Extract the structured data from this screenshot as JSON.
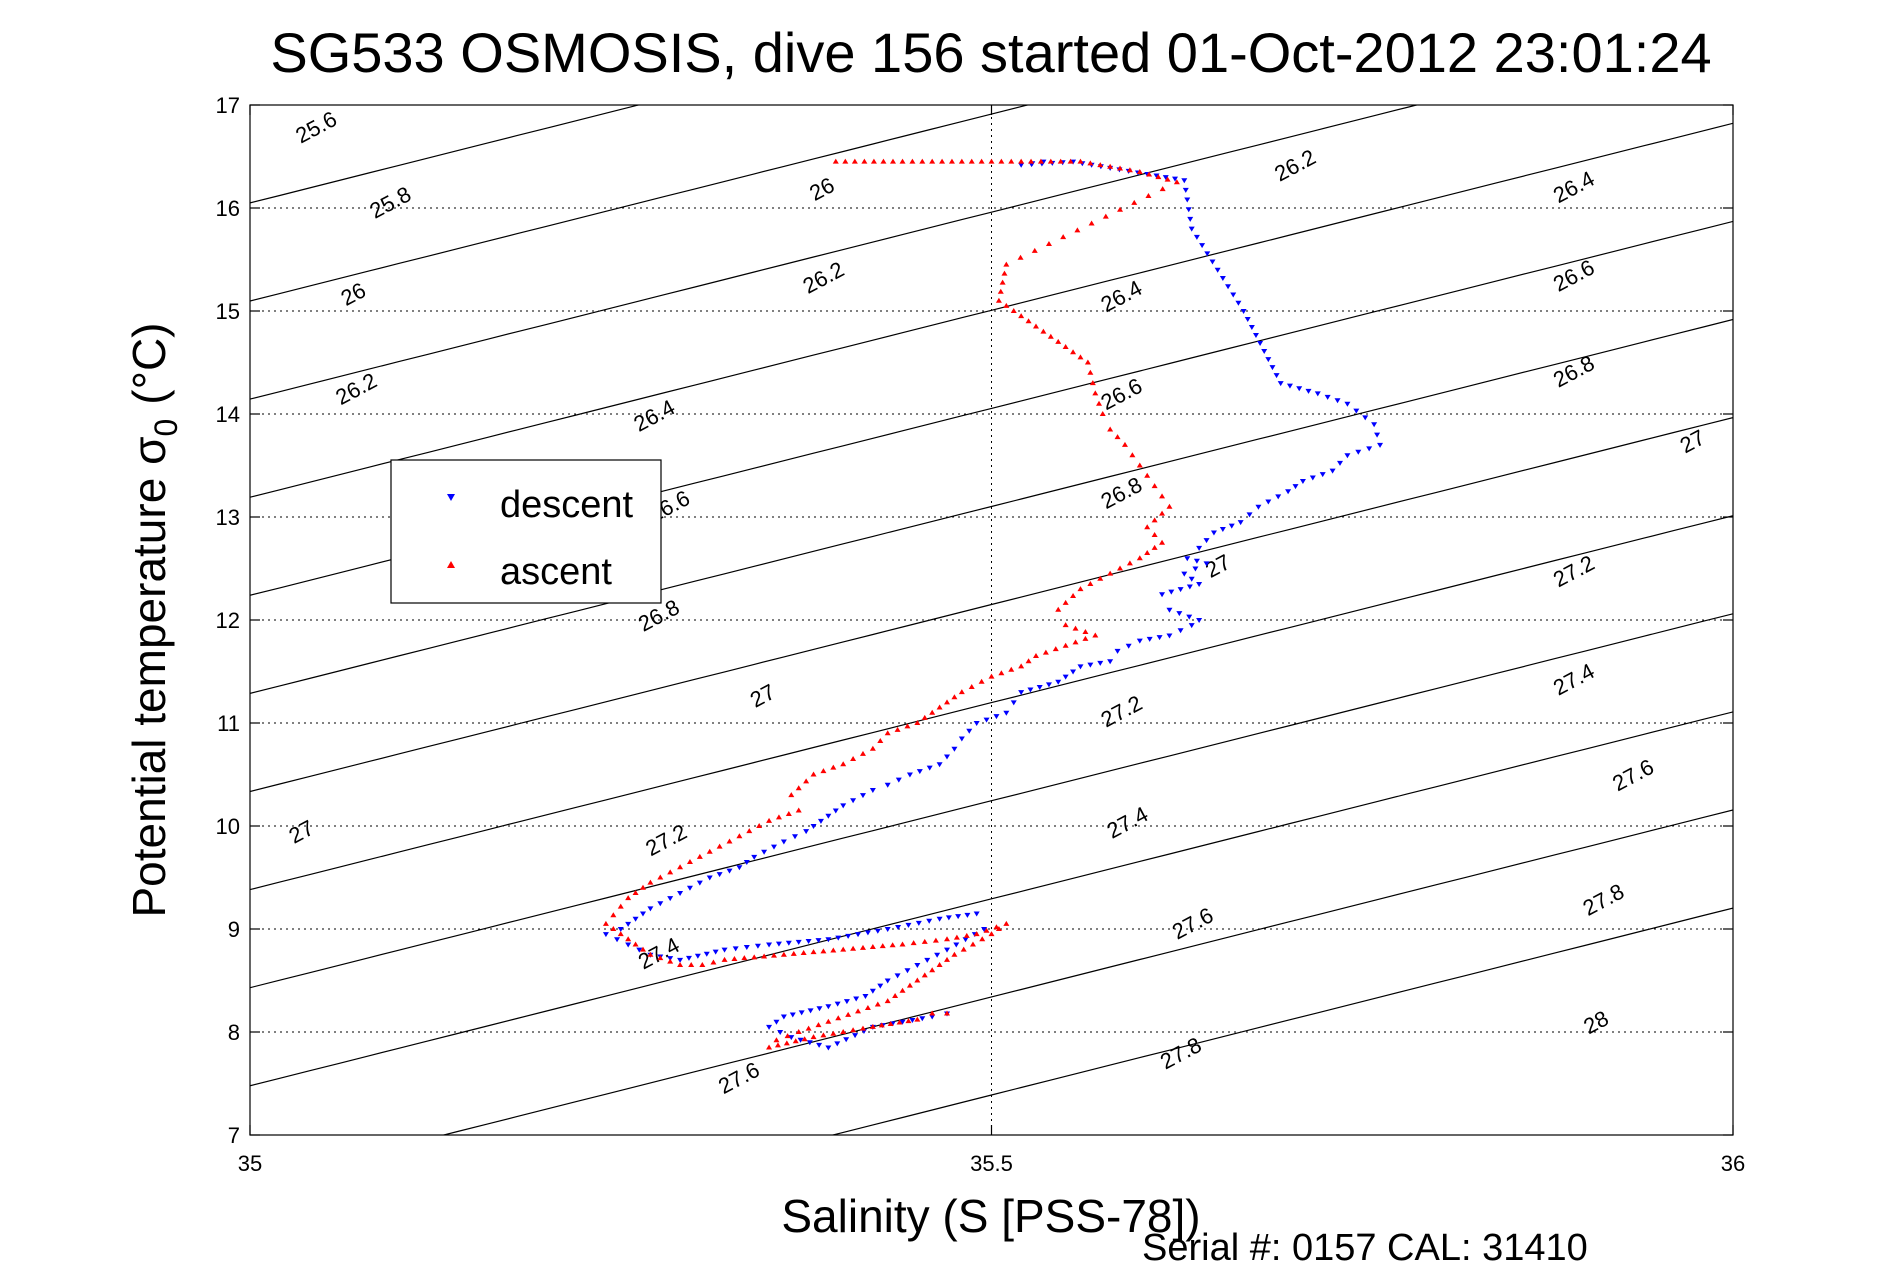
{
  "chart_data": {
    "type": "scatter",
    "title": "SG533 OSMOSIS, dive 156 started 01-Oct-2012 23:01:24",
    "xlabel": "Salinity (S [PSS-78])",
    "ylabel_main": "Potential temperature σ",
    "ylabel_sub": "0",
    "ylabel_unit": "(°C)",
    "xlim": [
      35,
      36
    ],
    "ylim": [
      7,
      17
    ],
    "xticks": [
      35,
      35.5,
      36
    ],
    "xtick_labels": [
      "35",
      "35.5",
      "36"
    ],
    "yticks": [
      7,
      8,
      9,
      10,
      11,
      12,
      13,
      14,
      15,
      16,
      17
    ],
    "ytick_labels": [
      "7",
      "8",
      "9",
      "10",
      "11",
      "12",
      "13",
      "14",
      "15",
      "16",
      "17"
    ],
    "grid": true,
    "legend_position": "left",
    "colors": {
      "descent": "#0000ff",
      "ascent": "#ff0000"
    },
    "contours": {
      "levels": [
        25.6,
        25.8,
        26.0,
        26.2,
        26.4,
        26.6,
        26.8,
        27.0,
        27.2,
        27.4,
        27.6,
        27.8,
        28.0
      ],
      "labels": [
        {
          "text": "25.6",
          "x": 35.047,
          "y": 16.72
        },
        {
          "text": "25.8",
          "x": 35.097,
          "y": 15.99
        },
        {
          "text": "26",
          "x": 35.072,
          "y": 15.1
        },
        {
          "text": "26.2",
          "x": 35.074,
          "y": 14.18
        },
        {
          "text": "26.4",
          "x": 35.275,
          "y": 13.92
        },
        {
          "text": "26.6",
          "x": 35.285,
          "y": 13.04
        },
        {
          "text": "26.8",
          "x": 35.278,
          "y": 11.98
        },
        {
          "text": "27",
          "x": 35.348,
          "y": 11.2
        },
        {
          "text": "27",
          "x": 35.037,
          "y": 9.88
        },
        {
          "text": "27.2",
          "x": 35.283,
          "y": 9.8
        },
        {
          "text": "27.4",
          "x": 35.278,
          "y": 8.7
        },
        {
          "text": "27.6",
          "x": 35.332,
          "y": 7.49
        },
        {
          "text": "26",
          "x": 35.388,
          "y": 16.12
        },
        {
          "text": "26.2",
          "x": 35.389,
          "y": 15.26
        },
        {
          "text": "26.4",
          "x": 35.59,
          "y": 15.08
        },
        {
          "text": "26.6",
          "x": 35.59,
          "y": 14.13
        },
        {
          "text": "26.8",
          "x": 35.59,
          "y": 13.17
        },
        {
          "text": "27",
          "x": 35.655,
          "y": 12.46
        },
        {
          "text": "27.2",
          "x": 35.59,
          "y": 11.05
        },
        {
          "text": "27.4",
          "x": 35.594,
          "y": 9.97
        },
        {
          "text": "27.6",
          "x": 35.638,
          "y": 8.99
        },
        {
          "text": "27.8",
          "x": 35.63,
          "y": 7.73
        },
        {
          "text": "26.2",
          "x": 35.707,
          "y": 16.35
        },
        {
          "text": "26.4",
          "x": 35.895,
          "y": 16.14
        },
        {
          "text": "26.6",
          "x": 35.895,
          "y": 15.28
        },
        {
          "text": "26.8",
          "x": 35.895,
          "y": 14.35
        },
        {
          "text": "27",
          "x": 35.975,
          "y": 13.67
        },
        {
          "text": "27.2",
          "x": 35.895,
          "y": 12.41
        },
        {
          "text": "27.4",
          "x": 35.895,
          "y": 11.36
        },
        {
          "text": "27.6",
          "x": 35.935,
          "y": 10.43
        },
        {
          "text": "27.8",
          "x": 35.915,
          "y": 9.22
        },
        {
          "text": "28",
          "x": 35.91,
          "y": 8.03
        }
      ]
    },
    "series": [
      {
        "name": "descent",
        "marker": "triangle-down",
        "x": [
          35.535,
          35.52,
          35.555,
          35.63,
          35.635,
          35.67,
          35.695,
          35.72,
          35.74,
          35.758,
          35.762,
          35.74,
          35.73,
          35.71,
          35.7,
          35.68,
          35.668,
          35.65,
          35.64,
          35.632,
          35.645,
          35.63,
          35.64,
          35.615,
          35.62,
          35.64,
          35.635,
          35.62,
          35.6,
          35.585,
          35.58,
          35.56,
          35.545,
          35.52,
          35.51,
          35.49,
          35.48,
          35.475,
          35.465,
          35.445,
          35.43,
          35.42,
          35.4,
          35.39,
          35.375,
          35.36,
          35.34,
          35.33,
          35.31,
          35.29,
          35.27,
          35.25,
          35.24,
          35.255,
          35.27,
          35.29,
          35.32,
          35.35,
          35.39,
          35.43,
          35.465,
          35.49,
          35.495,
          35.47,
          35.45,
          35.43,
          35.415,
          35.39,
          35.36,
          35.35,
          35.365,
          35.39,
          35.42,
          35.46,
          35.47
        ],
        "y": [
          16.45,
          16.42,
          16.45,
          16.27,
          15.8,
          15.0,
          14.3,
          14.2,
          14.1,
          13.9,
          13.7,
          13.6,
          13.45,
          13.35,
          13.25,
          13.1,
          12.95,
          12.85,
          12.7,
          12.6,
          12.55,
          12.45,
          12.35,
          12.25,
          12.1,
          12.0,
          11.95,
          11.85,
          11.8,
          11.7,
          11.6,
          11.55,
          11.4,
          11.3,
          11.1,
          11.0,
          10.85,
          10.75,
          10.6,
          10.5,
          10.4,
          10.35,
          10.2,
          10.1,
          9.95,
          9.85,
          9.7,
          9.6,
          9.5,
          9.35,
          9.2,
          9.0,
          8.95,
          8.85,
          8.75,
          8.7,
          8.8,
          8.85,
          8.9,
          9.0,
          9.1,
          9.15,
          9.0,
          8.8,
          8.65,
          8.5,
          8.35,
          8.25,
          8.15,
          8.05,
          7.95,
          7.85,
          8.05,
          8.15,
          8.18
        ]
      },
      {
        "name": "ascent",
        "marker": "triangle-up",
        "x": [
          35.395,
          35.44,
          35.48,
          35.52,
          35.56,
          35.6,
          35.625,
          35.51,
          35.505,
          35.565,
          35.57,
          35.575,
          35.58,
          35.59,
          35.6,
          35.61,
          35.62,
          35.605,
          35.615,
          35.6,
          35.58,
          35.56,
          35.545,
          35.55,
          35.57,
          35.55,
          35.53,
          35.52,
          35.5,
          35.48,
          35.465,
          35.45,
          35.43,
          35.42,
          35.4,
          35.38,
          35.365,
          35.37,
          35.35,
          35.33,
          35.31,
          35.29,
          35.27,
          35.255,
          35.24,
          35.25,
          35.26,
          35.27,
          35.29,
          35.305,
          35.32,
          35.36,
          35.4,
          35.44,
          35.47,
          35.49,
          35.51,
          35.5,
          35.475,
          35.46,
          35.445,
          35.43,
          35.41,
          35.39,
          35.37,
          35.355,
          35.35,
          35.38,
          35.42,
          35.45,
          35.46,
          35.47
        ],
        "y": [
          16.45,
          16.45,
          16.45,
          16.45,
          16.45,
          16.35,
          16.25,
          15.45,
          15.1,
          14.5,
          14.2,
          14.0,
          13.85,
          13.7,
          13.5,
          13.3,
          13.1,
          12.9,
          12.75,
          12.6,
          12.45,
          12.3,
          12.1,
          11.95,
          11.85,
          11.75,
          11.65,
          11.55,
          11.45,
          11.3,
          11.15,
          11.0,
          10.9,
          10.75,
          10.6,
          10.5,
          10.3,
          10.15,
          10.05,
          9.9,
          9.75,
          9.6,
          9.45,
          9.3,
          9.05,
          8.95,
          8.85,
          8.75,
          8.65,
          8.65,
          8.7,
          8.75,
          8.8,
          8.85,
          8.9,
          8.95,
          9.05,
          8.95,
          8.75,
          8.6,
          8.45,
          8.3,
          8.2,
          8.1,
          8.0,
          7.92,
          7.85,
          7.95,
          8.05,
          8.12,
          8.18,
          8.18
        ]
      }
    ]
  },
  "legend": {
    "descent_label": "descent",
    "ascent_label": "ascent"
  },
  "footer": "Serial #: 0157  CAL: 31410"
}
